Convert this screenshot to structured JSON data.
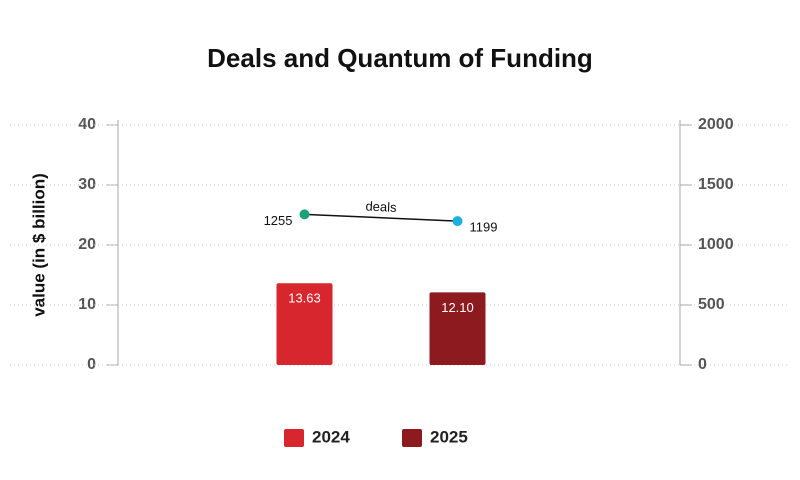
{
  "chart_data": {
    "type": "bar",
    "title": "Deals and Quantum of Funding",
    "ylabel": "value (in $ billion)",
    "categories": [
      null,
      null
    ],
    "series": [
      {
        "name": "2024",
        "color": "#d7262d",
        "values": [
          13.63,
          null
        ]
      },
      {
        "name": "2025",
        "color": "#8c1a1f",
        "values": [
          null,
          12.1
        ],
        "value_labels": [
          null,
          "12.10"
        ]
      },
      {
        "name": "deals",
        "type": "line",
        "axis": "y2",
        "color": "#111111",
        "point_colors": [
          "#1aa37a",
          "#1ab0e0"
        ],
        "values": [
          1255,
          1199
        ]
      }
    ],
    "ylim": [
      0,
      40
    ],
    "yticks": [
      0,
      10,
      20,
      30,
      40
    ],
    "y2lim": [
      0,
      2000
    ],
    "y2ticks": [
      0,
      500,
      1000,
      1500,
      2000
    ],
    "grid": true,
    "legend": "bottom"
  }
}
